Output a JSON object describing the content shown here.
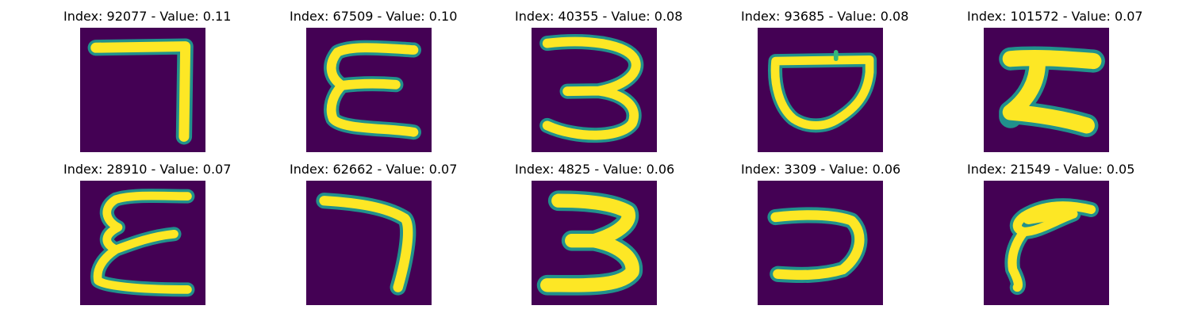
{
  "figure": {
    "colormap": {
      "background": "#440154",
      "low": "#31688e",
      "mid": "#35b779",
      "high": "#fde725"
    },
    "panels": [
      {
        "title": "Index: 92077 - Value: 0.11",
        "index": 92077,
        "value": 0.11,
        "glyph": "7"
      },
      {
        "title": "Index: 67509 - Value: 0.10",
        "index": 67509,
        "value": 0.1,
        "glyph": "E"
      },
      {
        "title": "Index: 40355 - Value: 0.08",
        "index": 40355,
        "value": 0.08,
        "glyph": "3"
      },
      {
        "title": "Index: 93685 - Value: 0.08",
        "index": 93685,
        "value": 0.08,
        "glyph": "D"
      },
      {
        "title": "Index: 101572 - Value: 0.07",
        "index": 101572,
        "value": 0.07,
        "glyph": "Z"
      },
      {
        "title": "Index: 28910 - Value: 0.07",
        "index": 28910,
        "value": 0.07,
        "glyph": "E"
      },
      {
        "title": "Index: 62662 - Value: 0.07",
        "index": 62662,
        "value": 0.07,
        "glyph": "7"
      },
      {
        "title": "Index: 4825 - Value: 0.06",
        "index": 4825,
        "value": 0.06,
        "glyph": "3"
      },
      {
        "title": "Index: 3309 - Value: 0.06",
        "index": 3309,
        "value": 0.06,
        "glyph": "C"
      },
      {
        "title": "Index: 21549 - Value: 0.05",
        "index": 21549,
        "value": 0.05,
        "glyph": "r"
      }
    ]
  }
}
